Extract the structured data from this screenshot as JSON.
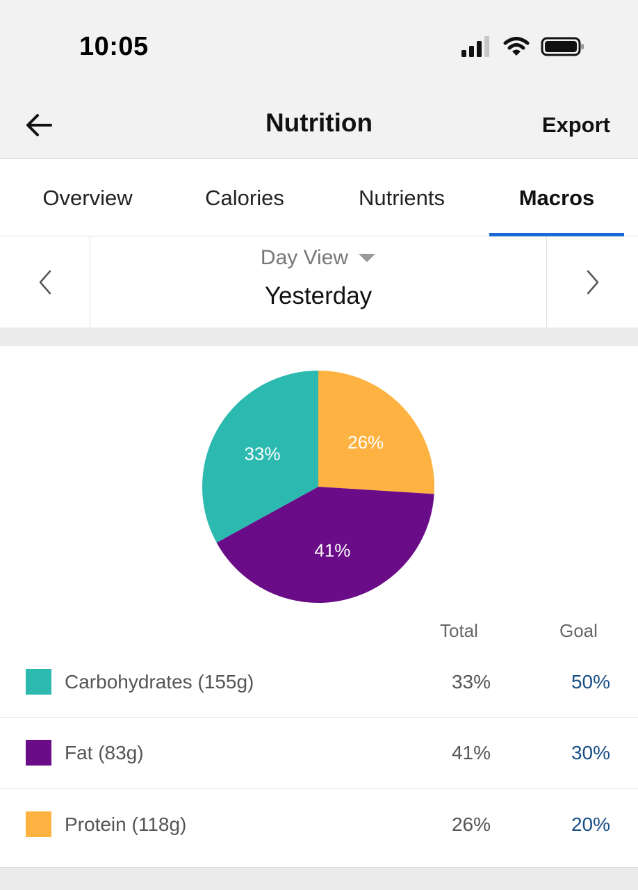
{
  "status_bar": {
    "time": "10:05"
  },
  "header": {
    "title": "Nutrition",
    "export_label": "Export"
  },
  "tabs": [
    {
      "label": "Overview",
      "active": false
    },
    {
      "label": "Calories",
      "active": false
    },
    {
      "label": "Nutrients",
      "active": false
    },
    {
      "label": "Macros",
      "active": true
    }
  ],
  "date_nav": {
    "view_label": "Day View",
    "date_label": "Yesterday"
  },
  "table": {
    "total_header": "Total",
    "goal_header": "Goal",
    "rows": [
      {
        "label": "Carbohydrates (155g)",
        "total": "33%",
        "goal": "50%",
        "color": "#2bb9b0"
      },
      {
        "label": "Fat (83g)",
        "total": "41%",
        "goal": "30%",
        "color": "#6a0c87"
      },
      {
        "label": "Protein (118g)",
        "total": "26%",
        "goal": "20%",
        "color": "#fdb241"
      }
    ]
  },
  "chart_data": {
    "type": "pie",
    "slices": [
      {
        "name": "Protein",
        "value": 26,
        "label": "26%",
        "color": "#fdb241"
      },
      {
        "name": "Fat",
        "value": 41,
        "label": "41%",
        "color": "#6a0c87"
      },
      {
        "name": "Carbohydrates",
        "value": 33,
        "label": "33%",
        "color": "#2bb9b0"
      }
    ],
    "start_angle_deg": 0,
    "direction": "clockwise",
    "legend": "table-below"
  },
  "colors": {
    "accent": "#1a6ad6",
    "goal_text": "#1a4f86"
  },
  "icons": {
    "back": "arrow-left-icon",
    "prev": "chevron-left-icon",
    "next": "chevron-right-icon",
    "dropdown": "caret-down-icon",
    "signal": "signal-icon",
    "wifi": "wifi-icon",
    "battery": "battery-icon"
  }
}
